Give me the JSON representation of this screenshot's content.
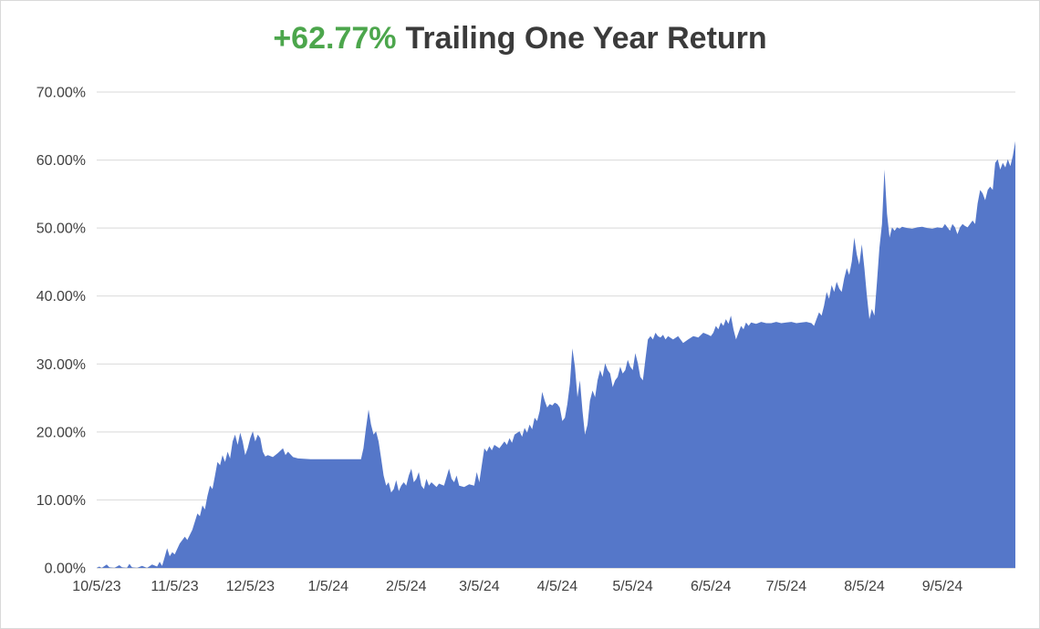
{
  "title": {
    "highlight": "+62.77%",
    "rest": "Trailing One Year Return"
  },
  "colors": {
    "highlight_green": "#4CA64C",
    "title_gray": "#3B3B3B",
    "area_blue": "#5577C9",
    "grid": "#D9D9D9",
    "axis_line": "#BFBFBF",
    "axis_text": "#404040",
    "background": "#FFFFFF"
  },
  "chart_data": {
    "type": "area",
    "title": "+62.77% Trailing One Year Return",
    "highlight_value": "+62.77%",
    "xlabel": "",
    "ylabel": "",
    "ylim": [
      0,
      70
    ],
    "y_ticks": [
      "0.00%",
      "10.00%",
      "20.00%",
      "30.00%",
      "40.00%",
      "50.00%",
      "60.00%",
      "70.00%"
    ],
    "y_tick_values": [
      0,
      10,
      20,
      30,
      40,
      50,
      60,
      70
    ],
    "x_range_days": [
      0,
      365
    ],
    "x_ticks": [
      {
        "label": "10/5/23",
        "day": 0
      },
      {
        "label": "11/5/23",
        "day": 31
      },
      {
        "label": "12/5/23",
        "day": 61
      },
      {
        "label": "1/5/24",
        "day": 92
      },
      {
        "label": "2/5/24",
        "day": 123
      },
      {
        "label": "3/5/24",
        "day": 152
      },
      {
        "label": "4/5/24",
        "day": 183
      },
      {
        "label": "5/5/24",
        "day": 213
      },
      {
        "label": "6/5/24",
        "day": 244
      },
      {
        "label": "7/5/24",
        "day": 274
      },
      {
        "label": "8/5/24",
        "day": 305
      },
      {
        "label": "9/5/24",
        "day": 336
      }
    ],
    "grid": true,
    "legend": false,
    "final_value_pct": 62.77,
    "series": [
      {
        "name": "Trailing One Year Return",
        "points_day_pct": [
          [
            0,
            0
          ],
          [
            1,
            0.2
          ],
          [
            2,
            0
          ],
          [
            4,
            0.5
          ],
          [
            5,
            0.1
          ],
          [
            7,
            0
          ],
          [
            9,
            0.4
          ],
          [
            10,
            0.1
          ],
          [
            12,
            0
          ],
          [
            13,
            0.6
          ],
          [
            14,
            0.1
          ],
          [
            16,
            0
          ],
          [
            18,
            0.3
          ],
          [
            20,
            0
          ],
          [
            22,
            0.5
          ],
          [
            24,
            0.2
          ],
          [
            25,
            0.9
          ],
          [
            26,
            0.3
          ],
          [
            27,
            1.6
          ],
          [
            28,
            2.9
          ],
          [
            29,
            1.7
          ],
          [
            30,
            2.3
          ],
          [
            31,
            2.0
          ],
          [
            33,
            3.6
          ],
          [
            35,
            4.6
          ],
          [
            36,
            4.1
          ],
          [
            38,
            5.6
          ],
          [
            40,
            8.0
          ],
          [
            41,
            7.6
          ],
          [
            42,
            9.2
          ],
          [
            43,
            8.6
          ],
          [
            44,
            10.6
          ],
          [
            45,
            12.1
          ],
          [
            46,
            11.6
          ],
          [
            47,
            13.6
          ],
          [
            48,
            15.6
          ],
          [
            49,
            15.1
          ],
          [
            50,
            16.6
          ],
          [
            51,
            15.6
          ],
          [
            52,
            17.1
          ],
          [
            53,
            16.1
          ],
          [
            54,
            18.6
          ],
          [
            55,
            19.6
          ],
          [
            56,
            18.1
          ],
          [
            57,
            19.9
          ],
          [
            58,
            18.6
          ],
          [
            59,
            16.6
          ],
          [
            60,
            17.6
          ],
          [
            61,
            19.1
          ],
          [
            62,
            20.1
          ],
          [
            63,
            18.6
          ],
          [
            64,
            19.6
          ],
          [
            65,
            19.1
          ],
          [
            66,
            17.1
          ],
          [
            67,
            16.4
          ],
          [
            68,
            16.6
          ],
          [
            70,
            16.3
          ],
          [
            72,
            16.9
          ],
          [
            74,
            17.6
          ],
          [
            75,
            16.6
          ],
          [
            76,
            17.1
          ],
          [
            78,
            16.3
          ],
          [
            80,
            16.1
          ],
          [
            85,
            16.0
          ],
          [
            90,
            16.0
          ],
          [
            95,
            16.0
          ],
          [
            100,
            16.0
          ],
          [
            105,
            16.0
          ],
          [
            106,
            17.6
          ],
          [
            107,
            20.6
          ],
          [
            108,
            23.3
          ],
          [
            109,
            21.1
          ],
          [
            110,
            19.6
          ],
          [
            111,
            20.1
          ],
          [
            112,
            18.6
          ],
          [
            113,
            16.1
          ],
          [
            114,
            13.6
          ],
          [
            115,
            12.1
          ],
          [
            116,
            12.6
          ],
          [
            117,
            11.1
          ],
          [
            118,
            11.6
          ],
          [
            119,
            12.9
          ],
          [
            120,
            11.3
          ],
          [
            121,
            12.1
          ],
          [
            122,
            12.6
          ],
          [
            123,
            12.1
          ],
          [
            124,
            13.6
          ],
          [
            125,
            14.6
          ],
          [
            126,
            12.6
          ],
          [
            127,
            13.1
          ],
          [
            128,
            14.1
          ],
          [
            129,
            12.1
          ],
          [
            130,
            11.6
          ],
          [
            131,
            13.1
          ],
          [
            132,
            12.1
          ],
          [
            133,
            12.6
          ],
          [
            135,
            11.9
          ],
          [
            136,
            12.4
          ],
          [
            138,
            12.1
          ],
          [
            140,
            14.6
          ],
          [
            141,
            13.1
          ],
          [
            142,
            12.6
          ],
          [
            143,
            13.6
          ],
          [
            144,
            12.1
          ],
          [
            146,
            11.9
          ],
          [
            148,
            12.3
          ],
          [
            150,
            12.1
          ],
          [
            151,
            14.1
          ],
          [
            152,
            12.6
          ],
          [
            153,
            15.1
          ],
          [
            154,
            17.6
          ],
          [
            155,
            17.1
          ],
          [
            156,
            17.9
          ],
          [
            157,
            17.3
          ],
          [
            158,
            18.1
          ],
          [
            160,
            17.6
          ],
          [
            162,
            18.6
          ],
          [
            163,
            18.1
          ],
          [
            164,
            19.1
          ],
          [
            165,
            18.4
          ],
          [
            166,
            19.6
          ],
          [
            168,
            20.1
          ],
          [
            169,
            19.3
          ],
          [
            170,
            20.6
          ],
          [
            171,
            19.9
          ],
          [
            172,
            21.1
          ],
          [
            173,
            20.4
          ],
          [
            174,
            22.1
          ],
          [
            175,
            21.6
          ],
          [
            176,
            23.1
          ],
          [
            177,
            25.9
          ],
          [
            178,
            24.6
          ],
          [
            179,
            23.6
          ],
          [
            180,
            24.1
          ],
          [
            181,
            23.9
          ],
          [
            182,
            24.3
          ],
          [
            183,
            24.1
          ],
          [
            184,
            23.6
          ],
          [
            185,
            21.6
          ],
          [
            186,
            22.1
          ],
          [
            187,
            24.1
          ],
          [
            188,
            27.1
          ],
          [
            189,
            32.3
          ],
          [
            190,
            29.6
          ],
          [
            191,
            25.1
          ],
          [
            192,
            27.6
          ],
          [
            193,
            23.1
          ],
          [
            194,
            19.6
          ],
          [
            195,
            21.1
          ],
          [
            196,
            24.6
          ],
          [
            197,
            26.1
          ],
          [
            198,
            25.1
          ],
          [
            199,
            27.6
          ],
          [
            200,
            29.1
          ],
          [
            201,
            28.1
          ],
          [
            202,
            30.1
          ],
          [
            203,
            29.1
          ],
          [
            204,
            28.6
          ],
          [
            205,
            26.6
          ],
          [
            206,
            27.6
          ],
          [
            207,
            28.1
          ],
          [
            208,
            29.6
          ],
          [
            209,
            28.6
          ],
          [
            210,
            29.1
          ],
          [
            211,
            30.6
          ],
          [
            212,
            29.6
          ],
          [
            213,
            29.1
          ],
          [
            214,
            31.6
          ],
          [
            215,
            30.1
          ],
          [
            216,
            28.1
          ],
          [
            217,
            27.6
          ],
          [
            218,
            30.6
          ],
          [
            219,
            33.6
          ],
          [
            220,
            34.1
          ],
          [
            221,
            33.6
          ],
          [
            222,
            34.6
          ],
          [
            223,
            34.1
          ],
          [
            224,
            33.9
          ],
          [
            225,
            34.3
          ],
          [
            226,
            33.6
          ],
          [
            227,
            34.1
          ],
          [
            229,
            33.6
          ],
          [
            231,
            34.1
          ],
          [
            233,
            33.1
          ],
          [
            235,
            33.6
          ],
          [
            237,
            34.1
          ],
          [
            239,
            33.9
          ],
          [
            241,
            34.6
          ],
          [
            243,
            34.3
          ],
          [
            244,
            34.1
          ],
          [
            245,
            34.6
          ],
          [
            246,
            35.6
          ],
          [
            247,
            35.1
          ],
          [
            248,
            36.1
          ],
          [
            249,
            35.6
          ],
          [
            250,
            36.6
          ],
          [
            251,
            35.9
          ],
          [
            252,
            37.1
          ],
          [
            253,
            35.1
          ],
          [
            254,
            33.6
          ],
          [
            255,
            34.6
          ],
          [
            256,
            35.6
          ],
          [
            257,
            35.1
          ],
          [
            258,
            36.1
          ],
          [
            259,
            35.6
          ],
          [
            260,
            36.1
          ],
          [
            262,
            35.9
          ],
          [
            264,
            36.2
          ],
          [
            266,
            36.0
          ],
          [
            268,
            36.0
          ],
          [
            270,
            36.2
          ],
          [
            272,
            36.0
          ],
          [
            274,
            36.1
          ],
          [
            276,
            36.2
          ],
          [
            278,
            36.0
          ],
          [
            280,
            36.1
          ],
          [
            282,
            36.2
          ],
          [
            284,
            36.0
          ],
          [
            285,
            35.6
          ],
          [
            286,
            36.6
          ],
          [
            287,
            37.6
          ],
          [
            288,
            37.1
          ],
          [
            289,
            38.6
          ],
          [
            290,
            40.6
          ],
          [
            291,
            39.6
          ],
          [
            292,
            41.6
          ],
          [
            293,
            40.6
          ],
          [
            294,
            42.1
          ],
          [
            295,
            41.1
          ],
          [
            296,
            40.6
          ],
          [
            297,
            42.6
          ],
          [
            298,
            44.1
          ],
          [
            299,
            43.1
          ],
          [
            300,
            45.1
          ],
          [
            301,
            48.6
          ],
          [
            302,
            46.1
          ],
          [
            303,
            44.6
          ],
          [
            304,
            47.6
          ],
          [
            305,
            44.1
          ],
          [
            306,
            40.1
          ],
          [
            307,
            36.6
          ],
          [
            308,
            38.1
          ],
          [
            309,
            37.1
          ],
          [
            310,
            42.1
          ],
          [
            311,
            47.1
          ],
          [
            312,
            50.6
          ],
          [
            313,
            58.6
          ],
          [
            314,
            52.1
          ],
          [
            315,
            48.6
          ],
          [
            316,
            50.1
          ],
          [
            317,
            49.6
          ],
          [
            318,
            50.1
          ],
          [
            319,
            49.9
          ],
          [
            320,
            50.2
          ],
          [
            322,
            50.0
          ],
          [
            324,
            49.9
          ],
          [
            326,
            50.1
          ],
          [
            328,
            50.2
          ],
          [
            330,
            50.0
          ],
          [
            332,
            49.9
          ],
          [
            334,
            50.1
          ],
          [
            336,
            50.0
          ],
          [
            337,
            50.6
          ],
          [
            338,
            50.1
          ],
          [
            339,
            49.6
          ],
          [
            340,
            50.6
          ],
          [
            341,
            50.1
          ],
          [
            342,
            49.1
          ],
          [
            343,
            50.1
          ],
          [
            344,
            50.6
          ],
          [
            345,
            50.3
          ],
          [
            346,
            50.1
          ],
          [
            347,
            50.6
          ],
          [
            348,
            51.1
          ],
          [
            349,
            50.6
          ],
          [
            350,
            53.6
          ],
          [
            351,
            55.6
          ],
          [
            352,
            55.1
          ],
          [
            353,
            54.1
          ],
          [
            354,
            55.6
          ],
          [
            355,
            56.1
          ],
          [
            356,
            55.6
          ],
          [
            357,
            59.6
          ],
          [
            358,
            60.1
          ],
          [
            359,
            58.6
          ],
          [
            360,
            59.6
          ],
          [
            361,
            58.9
          ],
          [
            362,
            60.1
          ],
          [
            363,
            59.1
          ],
          [
            364,
            60.6
          ],
          [
            365,
            62.77
          ]
        ]
      }
    ]
  }
}
